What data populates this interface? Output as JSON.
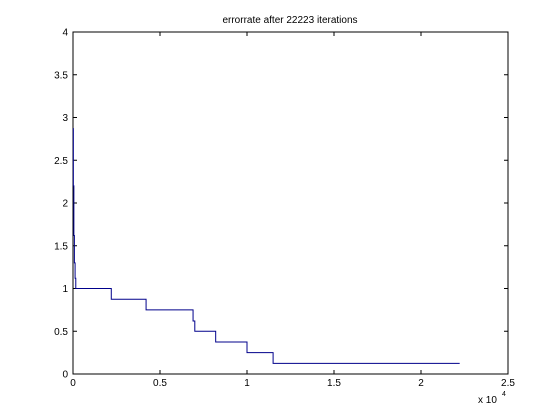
{
  "chart_data": {
    "type": "line",
    "title": "errorrate after 22223 iterations",
    "xlabel": "",
    "ylabel": "",
    "x_multiplier_label": "x 10",
    "x_multiplier_exponent": "4",
    "xlim": [
      0,
      2.5
    ],
    "ylim": [
      0,
      4
    ],
    "x_ticks": [
      "0",
      "0.5",
      "1",
      "1.5",
      "2",
      "2.5"
    ],
    "y_ticks": [
      "0",
      "0.5",
      "1",
      "1.5",
      "2",
      "2.5",
      "3",
      "3.5",
      "4"
    ],
    "grid": false,
    "line_color": "#00008b",
    "series": [
      {
        "step": "post",
        "x": [
          0,
          0.002,
          0.005,
          0.008,
          0.012,
          0.016,
          0.22,
          0.42,
          0.69,
          0.7,
          0.82,
          1.0,
          1.15,
          2.2223
        ],
        "y": [
          2.87,
          2.2,
          1.62,
          1.3,
          1.12,
          1.0,
          0.875,
          0.75,
          0.62,
          0.5,
          0.375,
          0.25,
          0.125,
          0.125
        ]
      }
    ]
  }
}
